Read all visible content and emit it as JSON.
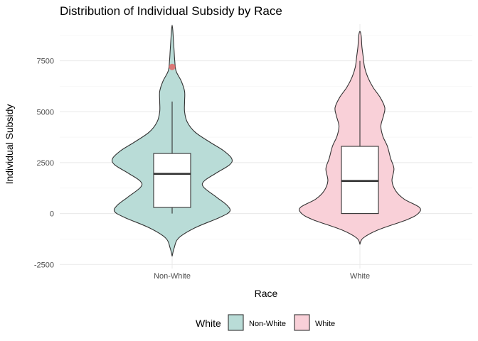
{
  "chart_data": {
    "type": "violin",
    "title": "Distribution of Individual Subsidy by Race",
    "xlabel": "Race",
    "ylabel": "Individual Subsidy",
    "ylim": [
      -2700,
      9300
    ],
    "y_ticks": [
      -2500,
      0,
      2500,
      5000,
      7500
    ],
    "y_tick_labels": [
      "-2500",
      "0",
      "2500",
      "5000",
      "7500"
    ],
    "categories": [
      "Non-White",
      "White"
    ],
    "legend": {
      "title": "White",
      "position": "bottom",
      "entries": [
        "Non-White",
        "White"
      ]
    },
    "colors": {
      "Non-White": "#b9dcd7",
      "White": "#f9d0d8",
      "outlier": "#e06666",
      "outline": "#333333"
    },
    "series": [
      {
        "name": "Non-White",
        "box": {
          "whisker_low": 0,
          "q1": 300,
          "median": 1950,
          "q3": 2950,
          "whisker_high": 5500
        },
        "outliers": [
          7200
        ],
        "density": [
          [
            -2100,
            0.0
          ],
          [
            -1700,
            0.03
          ],
          [
            -1200,
            0.1
          ],
          [
            -700,
            0.35
          ],
          [
            -200,
            0.72
          ],
          [
            100,
            0.88
          ],
          [
            400,
            0.84
          ],
          [
            800,
            0.68
          ],
          [
            1300,
            0.48
          ],
          [
            1600,
            0.49
          ],
          [
            2000,
            0.68
          ],
          [
            2400,
            0.88
          ],
          [
            2700,
            0.91
          ],
          [
            3100,
            0.78
          ],
          [
            3500,
            0.58
          ],
          [
            4000,
            0.35
          ],
          [
            4500,
            0.23
          ],
          [
            5000,
            0.19
          ],
          [
            5500,
            0.19
          ],
          [
            6000,
            0.19
          ],
          [
            6500,
            0.14
          ],
          [
            7000,
            0.06
          ],
          [
            7500,
            0.04
          ],
          [
            8000,
            0.03
          ],
          [
            8500,
            0.02
          ],
          [
            9000,
            0.01
          ],
          [
            9250,
            0.0
          ]
        ]
      },
      {
        "name": "White",
        "box": {
          "whisker_low": 0,
          "q1": 0,
          "median": 1600,
          "q3": 3300,
          "whisker_high": 7500
        },
        "outliers": [],
        "density": [
          [
            -1500,
            0.0
          ],
          [
            -1200,
            0.05
          ],
          [
            -800,
            0.28
          ],
          [
            -300,
            0.72
          ],
          [
            0,
            0.89
          ],
          [
            300,
            0.91
          ],
          [
            700,
            0.68
          ],
          [
            1100,
            0.55
          ],
          [
            1600,
            0.49
          ],
          [
            2200,
            0.52
          ],
          [
            2700,
            0.47
          ],
          [
            3300,
            0.42
          ],
          [
            3800,
            0.35
          ],
          [
            4300,
            0.32
          ],
          [
            4800,
            0.36
          ],
          [
            5200,
            0.38
          ],
          [
            5700,
            0.31
          ],
          [
            6200,
            0.2
          ],
          [
            6700,
            0.12
          ],
          [
            7200,
            0.07
          ],
          [
            7700,
            0.05
          ],
          [
            8200,
            0.03
          ],
          [
            8700,
            0.02
          ],
          [
            8950,
            0.0
          ]
        ]
      }
    ],
    "grid": true
  }
}
